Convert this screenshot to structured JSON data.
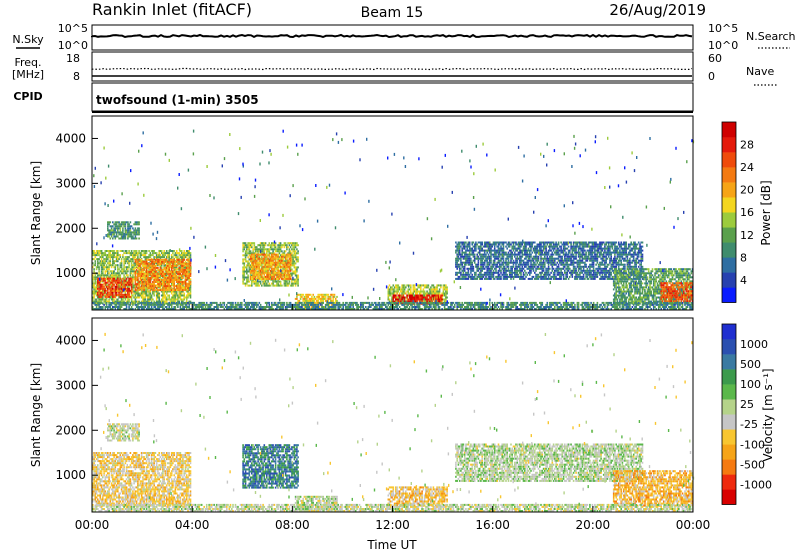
{
  "header": {
    "station": "Rankin Inlet (fitACF)",
    "beam": "Beam 15",
    "date": "26/Aug/2019"
  },
  "status_panel": {
    "nsky_label": "N.Sky",
    "nsky_ticks": [
      "10^5",
      "10^0"
    ],
    "nsearch_label": "N.Search",
    "nsearch_ticks": [
      "10^5",
      "10^0"
    ],
    "freq_label_1": "Freq.",
    "freq_label_2": "[MHz]",
    "freq_ticks": [
      "18",
      "8"
    ],
    "nave_label": "Nave",
    "nave_ticks": [
      "60",
      "0"
    ],
    "cpid_label": "CPID",
    "cpid_text": "twofsound (1-min) 3505"
  },
  "colors": {
    "power_scale": [
      "#0a1cff",
      "#2741b0",
      "#2e6ea2",
      "#3f8c6d",
      "#5aa04c",
      "#9ccb3d",
      "#f3d61f",
      "#f6a416",
      "#f47a11",
      "#ef4b0b",
      "#e41a0b",
      "#cf0000"
    ],
    "velocity_scale": [
      "#d80000",
      "#ee2a0e",
      "#f57a11",
      "#f6a418",
      "#f8c630",
      "#c6c6c6",
      "#b5d38a",
      "#5bb84b",
      "#3c9a4c",
      "#3a7aa2",
      "#2b50b0",
      "#1f2fd0"
    ]
  },
  "chart_data": [
    {
      "type": "heatmap",
      "name": "power",
      "xlabel": "",
      "ylabel": "Slant Range [km]",
      "xlim": [
        0,
        24
      ],
      "ylim": [
        180,
        4500
      ],
      "yticks": [
        1000,
        2000,
        3000,
        4000
      ],
      "colorbar_label": "Power [dB]",
      "colorbar_ticks": [
        "4",
        "8",
        "12",
        "16",
        "20",
        "24",
        "28"
      ],
      "colorbar_range": [
        0,
        32
      ],
      "regions": [
        {
          "t0": 0.0,
          "t1": 3.9,
          "r0": 300,
          "r1": 1500,
          "value": 14
        },
        {
          "t0": 0.2,
          "t1": 1.6,
          "r0": 450,
          "r1": 900,
          "value": 26
        },
        {
          "t0": 1.7,
          "t1": 3.9,
          "r0": 600,
          "r1": 1300,
          "value": 22
        },
        {
          "t0": 0.6,
          "t1": 1.9,
          "r0": 1750,
          "r1": 2150,
          "value": 10
        },
        {
          "t0": 6.0,
          "t1": 8.2,
          "r0": 700,
          "r1": 1650,
          "value": 14
        },
        {
          "t0": 6.3,
          "t1": 7.9,
          "r0": 850,
          "r1": 1400,
          "value": 21
        },
        {
          "t0": 8.1,
          "t1": 9.8,
          "r0": 180,
          "r1": 500,
          "value": 18
        },
        {
          "t0": 11.8,
          "t1": 14.2,
          "r0": 300,
          "r1": 750,
          "value": 15
        },
        {
          "t0": 12.0,
          "t1": 14.0,
          "r0": 300,
          "r1": 500,
          "value": 29
        },
        {
          "t0": 14.5,
          "t1": 22.0,
          "r0": 850,
          "r1": 1700,
          "value": 7
        },
        {
          "t0": 20.8,
          "t1": 24.0,
          "r0": 300,
          "r1": 1100,
          "value": 11
        },
        {
          "t0": 22.7,
          "t1": 24.0,
          "r0": 350,
          "r1": 800,
          "value": 25
        },
        {
          "t0": 0.0,
          "t1": 24.0,
          "r0": 180,
          "r1": 320,
          "value": 9
        }
      ]
    },
    {
      "type": "heatmap",
      "name": "velocity",
      "xlabel": "Time UT",
      "ylabel": "Slant Range [km]",
      "xlim": [
        0,
        24
      ],
      "ylim": [
        180,
        4500
      ],
      "yticks": [
        1000,
        2000,
        3000,
        4000
      ],
      "xticks": [
        "00:00",
        "04:00",
        "08:00",
        "12:00",
        "16:00",
        "20:00",
        "00:00"
      ],
      "colorbar_label": "Velocity [m s⁻¹]",
      "colorbar_ticks": [
        "-1000",
        "-500",
        "-100",
        "-25",
        "25",
        "100",
        "500",
        "1000"
      ],
      "colorbar_range": [
        -1250,
        1250
      ],
      "regions": [
        {
          "t0": 0.0,
          "t1": 3.9,
          "r0": 300,
          "r1": 1500,
          "value": -250
        },
        {
          "t0": 0.6,
          "t1": 1.9,
          "r0": 1750,
          "r1": 2150,
          "value": 0
        },
        {
          "t0": 6.0,
          "t1": 8.2,
          "r0": 700,
          "r1": 1650,
          "value": 700
        },
        {
          "t0": 8.1,
          "t1": 9.8,
          "r0": 180,
          "r1": 500,
          "value": 50
        },
        {
          "t0": 11.8,
          "t1": 14.2,
          "r0": 300,
          "r1": 750,
          "value": -350
        },
        {
          "t0": 14.5,
          "t1": 22.0,
          "r0": 850,
          "r1": 1700,
          "value": 60
        },
        {
          "t0": 20.8,
          "t1": 24.0,
          "r0": 300,
          "r1": 1100,
          "value": -400
        },
        {
          "t0": 0.0,
          "t1": 24.0,
          "r0": 180,
          "r1": 320,
          "value": 0
        }
      ]
    }
  ]
}
